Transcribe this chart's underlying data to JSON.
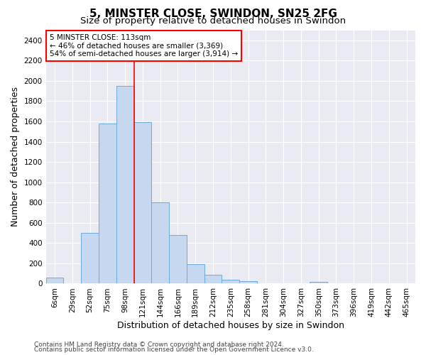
{
  "title": "5, MINSTER CLOSE, SWINDON, SN25 2FG",
  "subtitle": "Size of property relative to detached houses in Swindon",
  "xlabel": "Distribution of detached houses by size in Swindon",
  "ylabel": "Number of detached properties",
  "footnote1": "Contains HM Land Registry data © Crown copyright and database right 2024.",
  "footnote2": "Contains public sector information licensed under the Open Government Licence v3.0.",
  "bar_labels": [
    "6sqm",
    "29sqm",
    "52sqm",
    "75sqm",
    "98sqm",
    "121sqm",
    "144sqm",
    "166sqm",
    "189sqm",
    "212sqm",
    "235sqm",
    "258sqm",
    "281sqm",
    "304sqm",
    "327sqm",
    "350sqm",
    "373sqm",
    "396sqm",
    "419sqm",
    "442sqm",
    "465sqm"
  ],
  "bar_values": [
    60,
    0,
    500,
    1580,
    1950,
    1590,
    800,
    480,
    195,
    90,
    35,
    25,
    0,
    0,
    0,
    20,
    0,
    0,
    0,
    0,
    0
  ],
  "bar_color": "#c5d8f0",
  "bar_edge_color": "#6baad8",
  "vline_pos": 4.5,
  "vline_color": "red",
  "annotation_line1": "5 MINSTER CLOSE: 113sqm",
  "annotation_line2": "← 46% of detached houses are smaller (3,369)",
  "annotation_line3": "54% of semi-detached houses are larger (3,914) →",
  "annotation_box_color": "white",
  "annotation_box_edge": "red",
  "ylim": [
    0,
    2500
  ],
  "yticks": [
    0,
    200,
    400,
    600,
    800,
    1000,
    1200,
    1400,
    1600,
    1800,
    2000,
    2200,
    2400
  ],
  "background_color": "#eaeaf2",
  "grid_color": "white",
  "title_fontsize": 11,
  "subtitle_fontsize": 9.5,
  "axis_label_fontsize": 9,
  "tick_fontsize": 7.5,
  "footnote_fontsize": 6.5
}
